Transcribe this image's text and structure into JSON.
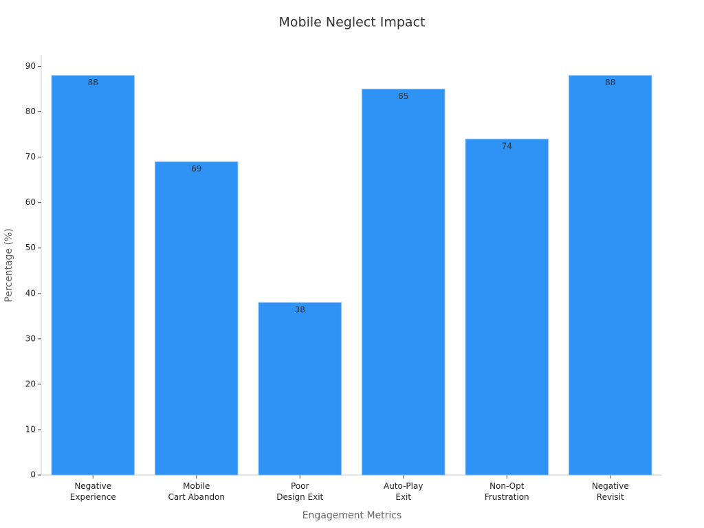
{
  "chart_data": {
    "type": "bar",
    "title": "Mobile Neglect Impact",
    "x_label": "Engagement Metrics",
    "y_label": "Percentage (%)",
    "categories": [
      "Negative\nExperience",
      "Mobile\nCart Abandon",
      "Poor\nDesign Exit",
      "Auto-Play\nExit",
      "Non-Opt\nFrustration",
      "Negative\nRevisit"
    ],
    "values": [
      88,
      69,
      38,
      85,
      74,
      88
    ],
    "color": "#2f92f5",
    "ylim": [
      0,
      92.5
    ],
    "yticks": [
      0,
      10,
      20,
      30,
      40,
      50,
      60,
      70,
      80,
      90
    ],
    "grid": false
  }
}
